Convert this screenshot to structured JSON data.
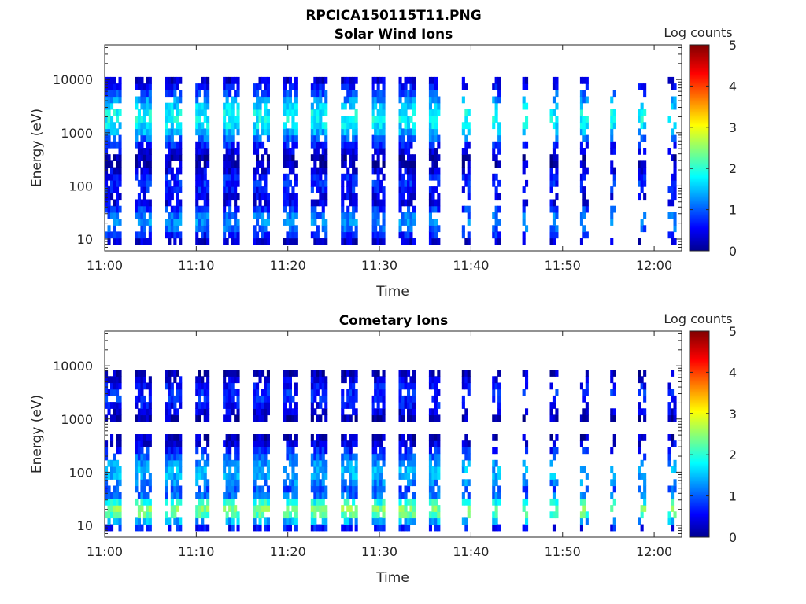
{
  "figure": {
    "title": "RPCICA150115T11.PNG"
  },
  "chart_data": [
    {
      "type": "heatmap",
      "title": "Solar Wind Ions",
      "xlabel": "Time",
      "ylabel": "Energy (eV)",
      "x_range": [
        "11:00",
        "12:03"
      ],
      "y_range": [
        6,
        45000
      ],
      "y_scale": "log",
      "x_ticks": [
        "11:00",
        "11:10",
        "11:20",
        "11:30",
        "11:40",
        "11:50",
        "12:00"
      ],
      "y_ticks": [
        "10",
        "100",
        "1000",
        "10000"
      ],
      "colorbar": {
        "label": "Log counts",
        "range": [
          0,
          5
        ],
        "ticks": [
          "0",
          "1",
          "2",
          "3",
          "4",
          "5"
        ],
        "colormap": "jet"
      },
      "time_axis": {
        "start": "11:00",
        "period_minutes": 3.2,
        "early_bands_end": "11:36"
      },
      "components": [
        {
          "name": "peak ~2 keV",
          "energy_ev": 2000,
          "log_counts": 1.9,
          "width_decades": 0.55
        },
        {
          "name": "band ~100 eV",
          "energy_ev": 110,
          "log_counts": 0.8,
          "width_decades": 0.35
        },
        {
          "name": "band ~20 eV",
          "energy_ev": 22,
          "log_counts": 1.3,
          "width_decades": 0.35
        }
      ]
    },
    {
      "type": "heatmap",
      "title": "Cometary Ions",
      "xlabel": "Time",
      "ylabel": "Energy (eV)",
      "x_range": [
        "11:00",
        "12:03"
      ],
      "y_range": [
        6,
        45000
      ],
      "y_scale": "log",
      "x_ticks": [
        "11:00",
        "11:10",
        "11:20",
        "11:30",
        "11:40",
        "11:50",
        "12:00"
      ],
      "y_ticks": [
        "10",
        "100",
        "1000",
        "10000"
      ],
      "colorbar": {
        "label": "Log counts",
        "range": [
          0,
          5
        ],
        "ticks": [
          "0",
          "1",
          "2",
          "3",
          "4",
          "5"
        ],
        "colormap": "jet"
      },
      "time_axis": {
        "start": "11:00",
        "period_minutes": 3.2,
        "early_bands_end": "11:36"
      },
      "components": [
        {
          "name": "band ~2-4 keV",
          "energy_ev": 2800,
          "log_counts": 0.8,
          "width_decades": 0.4
        },
        {
          "name": "band ~100 eV",
          "energy_ev": 100,
          "log_counts": 1.5,
          "width_decades": 0.5
        },
        {
          "name": "peak ~20 eV",
          "energy_ev": 20,
          "log_counts": 2.5,
          "width_decades": 0.3
        }
      ]
    }
  ]
}
